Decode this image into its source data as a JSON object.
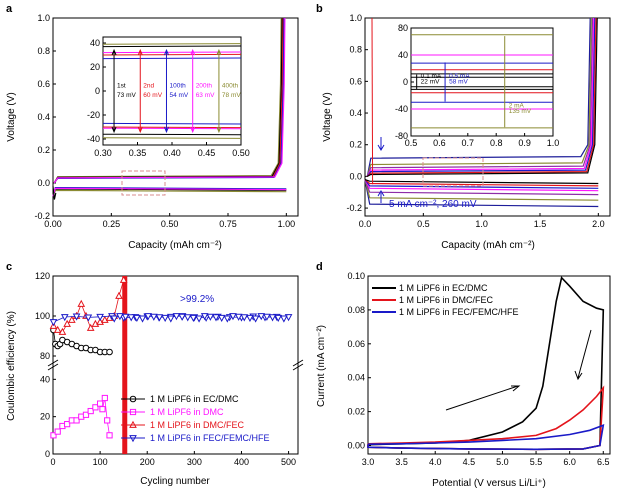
{
  "colors": {
    "black": "#000000",
    "red": "#e4141b",
    "blue": "#1a1ac8",
    "magenta": "#ff14ff",
    "olive": "#8b8b32",
    "purple": "#8e2da8",
    "navy": "#1e1e9a",
    "dash": "#d98c8c",
    "pink": "#ff3399"
  },
  "chart_data": [
    {
      "panel": "a",
      "type": "line",
      "xlabel": "Capacity (mAh cm⁻²)",
      "ylabel": "Voltage (V)",
      "xlim": [
        0,
        1.05
      ],
      "ylim": [
        -0.2,
        1.0
      ],
      "xticks": [
        "0.00",
        "0.25",
        "0.50",
        "0.75",
        "1.00"
      ],
      "yticks": [
        "-0.2",
        "0.0",
        "0.2",
        "0.4",
        "0.6",
        "0.8",
        "1.0"
      ],
      "series": [
        {
          "name": "1st",
          "color": "#000000",
          "plateau_mV": [
            -36,
            37
          ]
        },
        {
          "name": "2nd",
          "color": "#e4141b",
          "plateau_mV": [
            -30,
            30
          ]
        },
        {
          "name": "100th",
          "color": "#1a1ac8",
          "plateau_mV": [
            -27,
            27
          ]
        },
        {
          "name": "200th",
          "color": "#ff14ff",
          "plateau_mV": [
            -31,
            32
          ]
        },
        {
          "name": "400th",
          "color": "#8b8b32",
          "plateau_mV": [
            -39,
            39
          ]
        }
      ],
      "inset": {
        "xlim": [
          0.3,
          0.5
        ],
        "ylim": [
          -45,
          45
        ],
        "xticks": [
          "0.30",
          "0.35",
          "0.40",
          "0.45",
          "0.50"
        ],
        "yticks": [
          "-40",
          "-20",
          "0",
          "20",
          "40"
        ],
        "annotations": [
          {
            "cycle": "1st",
            "value": "73 mV"
          },
          {
            "cycle": "2nd",
            "value": "60 mV"
          },
          {
            "cycle": "100th",
            "value": "54 mV"
          },
          {
            "cycle": "200th",
            "value": "63 mV"
          },
          {
            "cycle": "400th",
            "value": "78 mV"
          }
        ]
      }
    },
    {
      "panel": "b",
      "type": "line",
      "xlabel": "Capacity (mAh cm⁻²)",
      "ylabel": "Voltage (V)",
      "xlim": [
        0,
        2.1
      ],
      "ylim": [
        -0.25,
        1.0
      ],
      "xticks": [
        "0.0",
        "0.5",
        "1.0",
        "1.5",
        "2.0"
      ],
      "yticks": [
        "-0.2",
        "0.0",
        "0.2",
        "0.4",
        "0.6",
        "0.8",
        "1.0"
      ],
      "annotation": "5 mA cm⁻², 260 mV",
      "inset": {
        "xlim": [
          0.5,
          1.0
        ],
        "ylim": [
          -80,
          80
        ],
        "xticks": [
          "0.5",
          "0.6",
          "0.7",
          "0.8",
          "0.9",
          "1.0"
        ],
        "yticks": [
          "-80",
          "-40",
          "0",
          "40",
          "80"
        ],
        "levels": [
          {
            "current": "0.1 mA",
            "value": "22 mV"
          },
          {
            "current": "0.5 mA",
            "value": "58 mV"
          },
          {
            "current": "2 mA",
            "value": "135 mV"
          }
        ]
      }
    },
    {
      "panel": "c",
      "type": "scatter",
      "xlabel": "Cycling number",
      "ylabel": "Coulombic efficiency (%)",
      "xlim": [
        0,
        520
      ],
      "xticks": [
        "0",
        "100",
        "200",
        "300",
        "400",
        "500"
      ],
      "yticks_upper": [
        "80",
        "100",
        "120"
      ],
      "yticks_lower": [
        "0",
        "20",
        "40"
      ],
      "annotation": ">99.2%",
      "series": [
        {
          "name": "1 M LiPF6 in EC/DMC",
          "color": "#000000",
          "marker": "circle",
          "x": [
            1,
            5,
            10,
            15,
            20,
            30,
            40,
            50,
            60,
            70,
            80,
            90,
            100,
            110,
            120
          ],
          "y": [
            93,
            86,
            85,
            86,
            88,
            87,
            86,
            85,
            84,
            84,
            83,
            83,
            82,
            82,
            82
          ]
        },
        {
          "name": "1 M LiPF6 in DMC",
          "color": "#ff14ff",
          "marker": "square",
          "x": [
            1,
            10,
            20,
            30,
            40,
            50,
            60,
            70,
            80,
            90,
            100,
            105,
            110,
            115,
            120
          ],
          "y": [
            10,
            12,
            15,
            16,
            18,
            18,
            20,
            21,
            23,
            25,
            27,
            24,
            30,
            18,
            10
          ]
        },
        {
          "name": "1 M LiPF6 in DMC/FEC",
          "color": "#e4141b",
          "marker": "triangle-up",
          "x": [
            1,
            10,
            20,
            30,
            40,
            50,
            60,
            70,
            80,
            90,
            100,
            110,
            120,
            130,
            140,
            150
          ],
          "y": [
            95,
            93,
            92,
            96,
            98,
            100,
            106,
            100,
            94,
            96,
            97,
            98,
            99,
            100,
            110,
            118
          ]
        },
        {
          "name": "1 M LiPF6 in FEC/FEMC/HFE",
          "color": "#1a1ac8",
          "marker": "triangle-down",
          "x": [
            1,
            25,
            50,
            75,
            100,
            125,
            150,
            175,
            200,
            225,
            250,
            275,
            300,
            325,
            350,
            375,
            400,
            425,
            450,
            475,
            500
          ],
          "y": [
            97,
            99.5,
            99.8,
            99.3,
            99.6,
            100,
            99.2,
            99.5,
            99.8,
            99.3,
            99.6,
            100,
            99.4,
            99.2,
            99.7,
            99.5,
            99.3,
            99.8,
            99.4,
            99.6,
            99.5
          ]
        }
      ],
      "legend": "bottom-right"
    },
    {
      "panel": "d",
      "type": "line",
      "xlabel": "Potential (V versus Li/Li⁺)",
      "ylabel": "Current (mA cm⁻²)",
      "xlim": [
        3.0,
        6.6
      ],
      "ylim": [
        -0.005,
        0.1
      ],
      "xticks": [
        "3.0",
        "3.5",
        "4.0",
        "4.5",
        "5.0",
        "5.5",
        "6.0",
        "6.5"
      ],
      "yticks": [
        "0.00",
        "0.02",
        "0.04",
        "0.06",
        "0.08",
        "0.10"
      ],
      "series": [
        {
          "name": "1 M LiPF6 in EC/DMC",
          "color": "#000000",
          "x": [
            3.0,
            3.5,
            4.0,
            4.5,
            5.0,
            5.3,
            5.5,
            5.6,
            5.7,
            5.8,
            5.88,
            6.0,
            6.2,
            6.4,
            6.5
          ],
          "y": [
            0.0005,
            0.001,
            0.0015,
            0.003,
            0.008,
            0.014,
            0.022,
            0.035,
            0.06,
            0.085,
            0.099,
            0.094,
            0.085,
            0.081,
            0.08
          ]
        },
        {
          "name": "1 M LiPF6 in DMC/FEC",
          "color": "#e4141b",
          "x": [
            3.0,
            3.5,
            4.0,
            4.5,
            5.0,
            5.5,
            5.8,
            6.0,
            6.2,
            6.4,
            6.5
          ],
          "y": [
            0.001,
            0.0015,
            0.002,
            0.003,
            0.004,
            0.006,
            0.01,
            0.015,
            0.021,
            0.029,
            0.034
          ]
        },
        {
          "name": "1 M LiPF6 in FEC/FEMC/HFE",
          "color": "#1a1ac8",
          "x": [
            3.0,
            3.5,
            4.0,
            4.5,
            5.0,
            5.5,
            6.0,
            6.3,
            6.5
          ],
          "y": [
            0.0008,
            0.001,
            0.0015,
            0.002,
            0.003,
            0.004,
            0.0065,
            0.009,
            0.012
          ]
        }
      ],
      "legend": "top-left"
    }
  ],
  "panel_labels": [
    "a",
    "b",
    "c",
    "d"
  ]
}
